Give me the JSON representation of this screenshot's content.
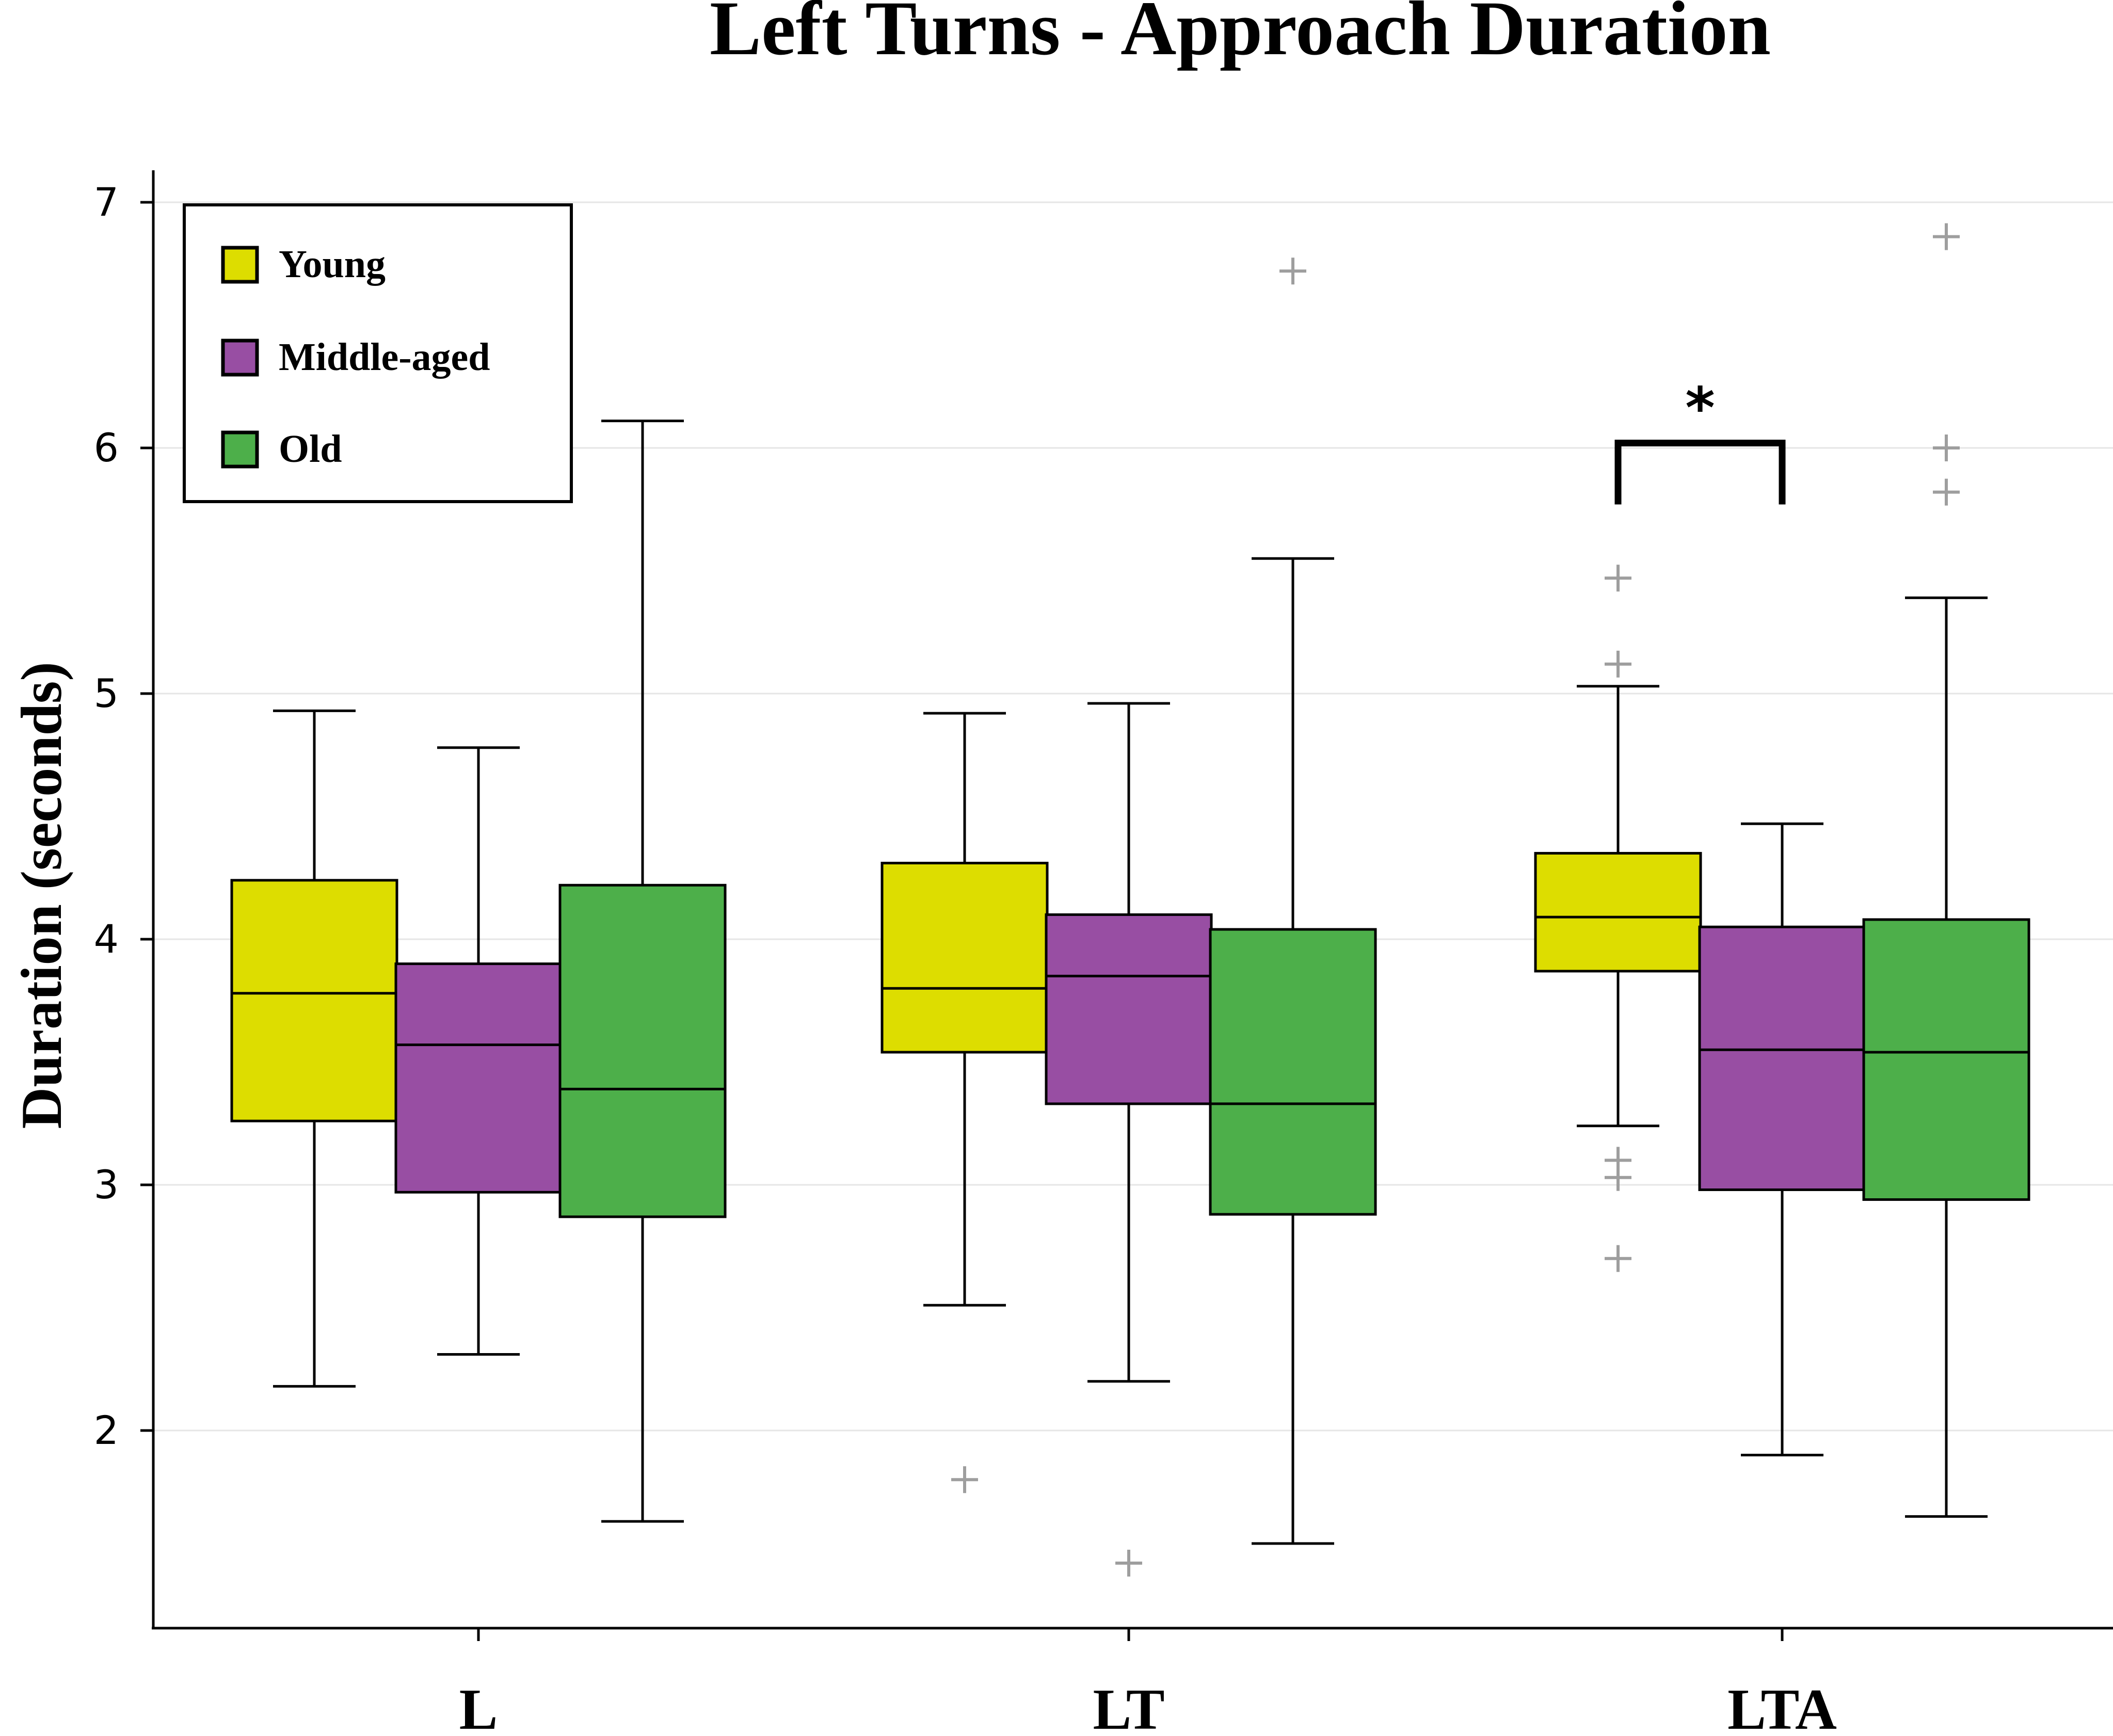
{
  "chart_data": {
    "type": "boxplot",
    "title": "Left Turns - Approach Duration",
    "xlabel": "",
    "ylabel": "Duration (seconds)",
    "ylim": [
      1.2,
      7.15
    ],
    "yticks": [
      2,
      3,
      4,
      5,
      6,
      7
    ],
    "ytick_labels": [
      "2",
      "3",
      "4",
      "5",
      "6",
      "7"
    ],
    "grid": "horizontal",
    "legend_position": "top-left",
    "categories": [
      "L",
      "LT",
      "LTA"
    ],
    "series": [
      {
        "name": "Young",
        "color": "#dddd00",
        "boxes": [
          {
            "whisker_low": 2.18,
            "q1": 3.26,
            "median": 3.78,
            "q3": 4.24,
            "whisker_high": 4.93,
            "outliers": []
          },
          {
            "whisker_low": 2.51,
            "q1": 3.54,
            "median": 3.8,
            "q3": 4.31,
            "whisker_high": 4.92,
            "outliers": [
              1.8
            ]
          },
          {
            "whisker_low": 3.24,
            "q1": 3.87,
            "median": 4.09,
            "q3": 4.35,
            "whisker_high": 5.03,
            "outliers": [
              5.47,
              5.12,
              3.1,
              3.03,
              2.7
            ]
          }
        ]
      },
      {
        "name": "Middle-aged",
        "color": "#984ea3",
        "boxes": [
          {
            "whisker_low": 2.31,
            "q1": 2.97,
            "median": 3.57,
            "q3": 3.9,
            "whisker_high": 4.78,
            "outliers": []
          },
          {
            "whisker_low": 2.2,
            "q1": 3.33,
            "median": 3.85,
            "q3": 4.1,
            "whisker_high": 4.96,
            "outliers": [
              1.46
            ]
          },
          {
            "whisker_low": 1.9,
            "q1": 2.98,
            "median": 3.55,
            "q3": 4.05,
            "whisker_high": 4.47,
            "outliers": []
          }
        ]
      },
      {
        "name": "Old",
        "color": "#4daf4a",
        "boxes": [
          {
            "whisker_low": 1.63,
            "q1": 2.87,
            "median": 3.39,
            "q3": 4.22,
            "whisker_high": 6.11,
            "outliers": []
          },
          {
            "whisker_low": 1.54,
            "q1": 2.88,
            "median": 3.33,
            "q3": 4.04,
            "whisker_high": 5.55,
            "outliers": [
              6.72
            ]
          },
          {
            "whisker_low": 1.65,
            "q1": 2.94,
            "median": 3.54,
            "q3": 4.08,
            "whisker_high": 5.39,
            "outliers": [
              6.86,
              6.0,
              5.82
            ]
          }
        ]
      }
    ],
    "annotations": [
      {
        "text": "*",
        "category": "LTA",
        "between": [
          "Young",
          "Middle-aged"
        ],
        "bracket_y": 6.02,
        "bracket_drop_to": 5.77
      }
    ]
  }
}
